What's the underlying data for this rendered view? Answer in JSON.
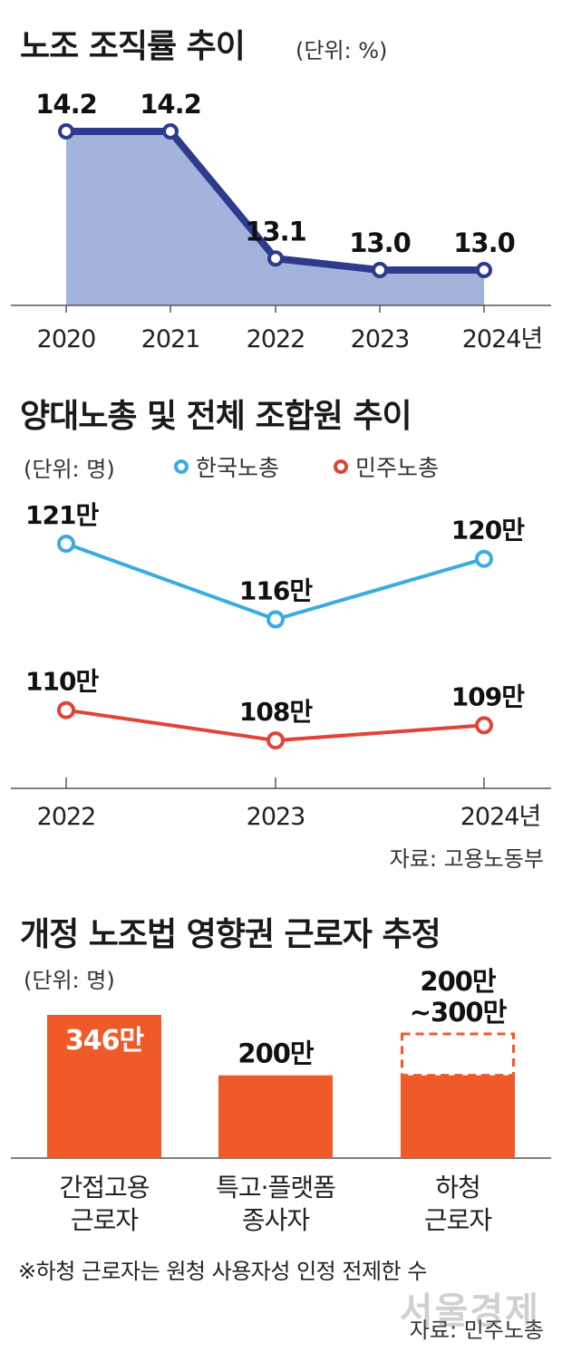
{
  "chart_data": [
    {
      "type": "area",
      "title": "노조 조직률 추이",
      "unit": "(단위: %)",
      "categories": [
        "2020",
        "2021",
        "2022",
        "2023",
        "2024년"
      ],
      "values": [
        14.2,
        14.2,
        13.1,
        13.0,
        13.0
      ],
      "value_labels": [
        "14.2",
        "14.2",
        "13.1",
        "13.0",
        "13.0"
      ],
      "colors": {
        "line": "#2e3a8c",
        "fill": "#a3b4dc"
      }
    },
    {
      "type": "line",
      "title": "양대노총 및 전체 조합원 추이",
      "unit": "(단위: 명)",
      "categories": [
        "2022",
        "2023",
        "2024년"
      ],
      "series": [
        {
          "name": "한국노총",
          "values": [
            121,
            116,
            120
          ],
          "labels": [
            "121만",
            "116만",
            "120만"
          ],
          "color": "#3aace0"
        },
        {
          "name": "민주노총",
          "values": [
            110,
            108,
            109
          ],
          "labels": [
            "110만",
            "108만",
            "109만"
          ],
          "color": "#e04438"
        }
      ],
      "source": "자료: 고용노동부"
    },
    {
      "type": "bar",
      "title": "개정 노조법 영향권 근로자 추정",
      "unit": "(단위: 명)",
      "categories": [
        [
          "간접고용",
          "근로자"
        ],
        [
          "특고·플랫폼",
          "종사자"
        ],
        [
          "하청",
          "근로자"
        ]
      ],
      "values": [
        346,
        200,
        200
      ],
      "range_max": [
        null,
        null,
        300
      ],
      "value_labels": [
        [
          "346만"
        ],
        [
          "200만"
        ],
        [
          "200만",
          "~300만"
        ]
      ],
      "color": "#f05a28",
      "note": "※하청 근로자는 원청 사용자성 인정 전제한 수",
      "source": "자료: 민주노총"
    }
  ],
  "watermark": "서울경제"
}
